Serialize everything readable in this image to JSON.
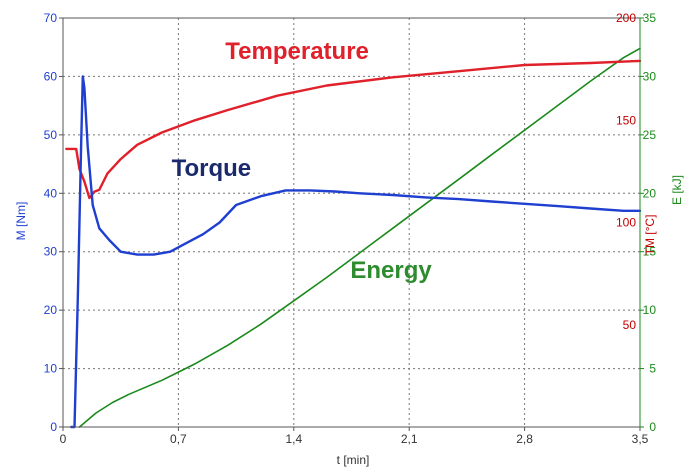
{
  "chart_data": {
    "type": "line",
    "title": "",
    "x_axis": {
      "label": "t [min]",
      "range": [
        0,
        3.5
      ],
      "ticks": [
        "0",
        "0,7",
        "1,4",
        "2,1",
        "2,8",
        "3,5"
      ]
    },
    "y_axes": {
      "torque": {
        "label": "M [Nm]",
        "range": [
          0,
          70
        ],
        "ticks": [
          "0",
          "10",
          "20",
          "30",
          "40",
          "50",
          "60",
          "70"
        ],
        "color": "#1f3fd0"
      },
      "temperature": {
        "label": "TM [°C]",
        "range": [
          0,
          200
        ],
        "ticks": [
          "50",
          "100",
          "150",
          "200"
        ],
        "color": "#c00000"
      },
      "energy": {
        "label": "E [kJ]",
        "range": [
          0,
          35
        ],
        "ticks": [
          "0",
          "5",
          "10",
          "15",
          "20",
          "25",
          "30",
          "35"
        ],
        "color": "#1b8a1b"
      }
    },
    "grid": true,
    "series": [
      {
        "name": "Temperature",
        "axis": "temperature",
        "color": "#e0202a",
        "x": [
          0.02,
          0.08,
          0.1,
          0.13,
          0.16,
          0.19,
          0.22,
          0.27,
          0.35,
          0.45,
          0.6,
          0.8,
          1.0,
          1.3,
          1.6,
          2.0,
          2.4,
          2.8,
          3.2,
          3.5
        ],
        "y": [
          136,
          136,
          126,
          120,
          112,
          115,
          116,
          124,
          131,
          138,
          144,
          150,
          155,
          162,
          167,
          171,
          174,
          177,
          178,
          179
        ]
      },
      {
        "name": "Torque",
        "axis": "torque",
        "color": "#1f3fd0",
        "x": [
          0.05,
          0.07,
          0.09,
          0.11,
          0.12,
          0.13,
          0.15,
          0.18,
          0.22,
          0.28,
          0.35,
          0.45,
          0.55,
          0.65,
          0.75,
          0.85,
          0.95,
          1.05,
          1.2,
          1.35,
          1.5,
          1.65,
          1.8,
          2.0,
          2.2,
          2.4,
          2.6,
          2.8,
          3.0,
          3.2,
          3.4,
          3.5
        ],
        "y": [
          0,
          0,
          22,
          48,
          60,
          58,
          48,
          38,
          34,
          32,
          30,
          29.5,
          29.5,
          30,
          31.5,
          33,
          35,
          38,
          39.5,
          40.5,
          40.5,
          40.3,
          40,
          39.7,
          39.3,
          39,
          38.6,
          38.2,
          37.8,
          37.4,
          37,
          37
        ]
      },
      {
        "name": "Energy",
        "axis": "energy",
        "color": "#1b8a1b",
        "x": [
          0.1,
          0.2,
          0.3,
          0.4,
          0.5,
          0.6,
          0.7,
          0.8,
          1.0,
          1.2,
          1.4,
          1.6,
          1.8,
          2.0,
          2.2,
          2.4,
          2.6,
          2.8,
          3.0,
          3.2,
          3.4,
          3.5
        ],
        "y": [
          0,
          1.2,
          2.1,
          2.8,
          3.4,
          4.0,
          4.7,
          5.4,
          7.0,
          8.8,
          10.8,
          12.8,
          14.9,
          17.0,
          19.1,
          21.2,
          23.3,
          25.4,
          27.5,
          29.6,
          31.6,
          32.4
        ]
      }
    ],
    "annotations": [
      {
        "text": "Temperature",
        "x": 1.42,
        "y_axis": "torque",
        "y": 63,
        "color": "#e0202a"
      },
      {
        "text": "Torque",
        "x": 0.9,
        "y_axis": "torque",
        "y": 43,
        "color": "#1a2a6c"
      },
      {
        "text": "Energy",
        "x": 1.99,
        "y_axis": "torque",
        "y": 25.5,
        "color": "#2e8b2e"
      }
    ]
  }
}
